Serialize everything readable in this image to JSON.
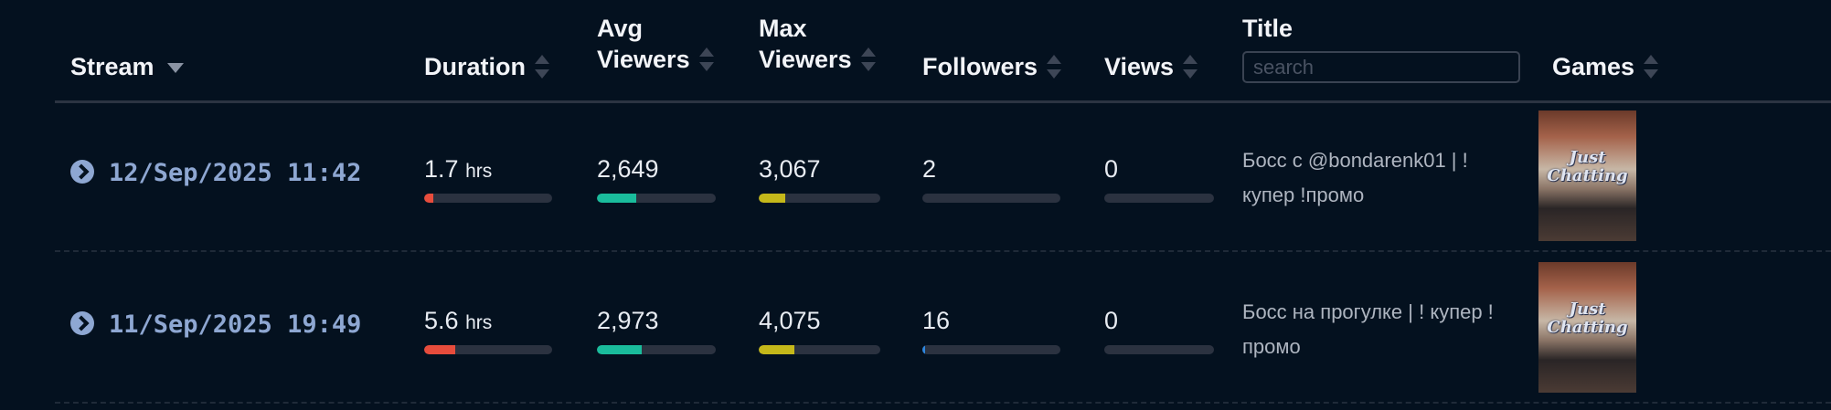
{
  "header": {
    "stream": "Stream",
    "duration": "Duration",
    "avg_viewers": [
      "Avg",
      "Viewers"
    ],
    "max_viewers": [
      "Max",
      "Viewers"
    ],
    "followers": "Followers",
    "views": "Views",
    "title": "Title",
    "title_search_placeholder": "search",
    "games": "Games"
  },
  "colors": {
    "duration": "#e74c3c",
    "avg_viewers": "#1abc9c",
    "max_viewers": "#c5b81a",
    "followers": "#2e86de"
  },
  "rows": [
    {
      "stream": "12/Sep/2025 11:42",
      "duration": "1.7",
      "duration_unit": "hrs",
      "duration_fill_pct": 7,
      "avg_viewers": "2,649",
      "avg_fill_pct": 33,
      "max_viewers": "3,067",
      "max_fill_pct": 22,
      "followers": "2",
      "followers_fill_pct": 0,
      "views": "0",
      "views_fill_pct": 0,
      "title": "Босс с @bondarenk01 | ! купер !промо",
      "game": "Just Chatting"
    },
    {
      "stream": "11/Sep/2025 19:49",
      "duration": "5.6",
      "duration_unit": "hrs",
      "duration_fill_pct": 24,
      "avg_viewers": "2,973",
      "avg_fill_pct": 38,
      "max_viewers": "4,075",
      "max_fill_pct": 29,
      "followers": "16",
      "followers_fill_pct": 2,
      "views": "0",
      "views_fill_pct": 0,
      "title": "Босс на прогулке | ! купер !промо",
      "game": "Just Chatting"
    }
  ]
}
